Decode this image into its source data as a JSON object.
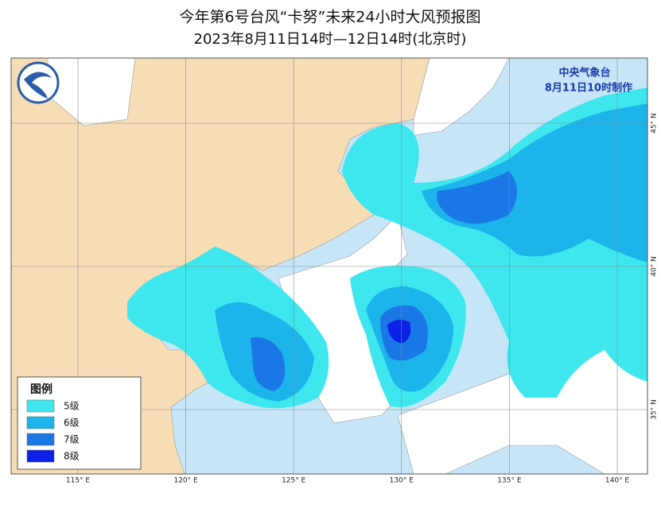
{
  "header": {
    "title": "今年第6号台风“卡努”未来24小时大风预报图",
    "subtitle": "2023年8月11日14时—12日14时(北京时)"
  },
  "issuer": {
    "name": "中央气象台",
    "time": "8月11日10时制作"
  },
  "legend": {
    "title": "图例",
    "items": [
      {
        "label": "5级",
        "color": "#3ee6ee"
      },
      {
        "label": "6级",
        "color": "#1cb4ea"
      },
      {
        "label": "7级",
        "color": "#1a78e6"
      },
      {
        "label": "8级",
        "color": "#0a22e6"
      }
    ]
  },
  "longitudes": [
    "115° E",
    "120° E",
    "125° E",
    "130° E",
    "135° E",
    "140° E"
  ],
  "latitudes": [
    "45° N",
    "40° N",
    "35° N"
  ]
}
